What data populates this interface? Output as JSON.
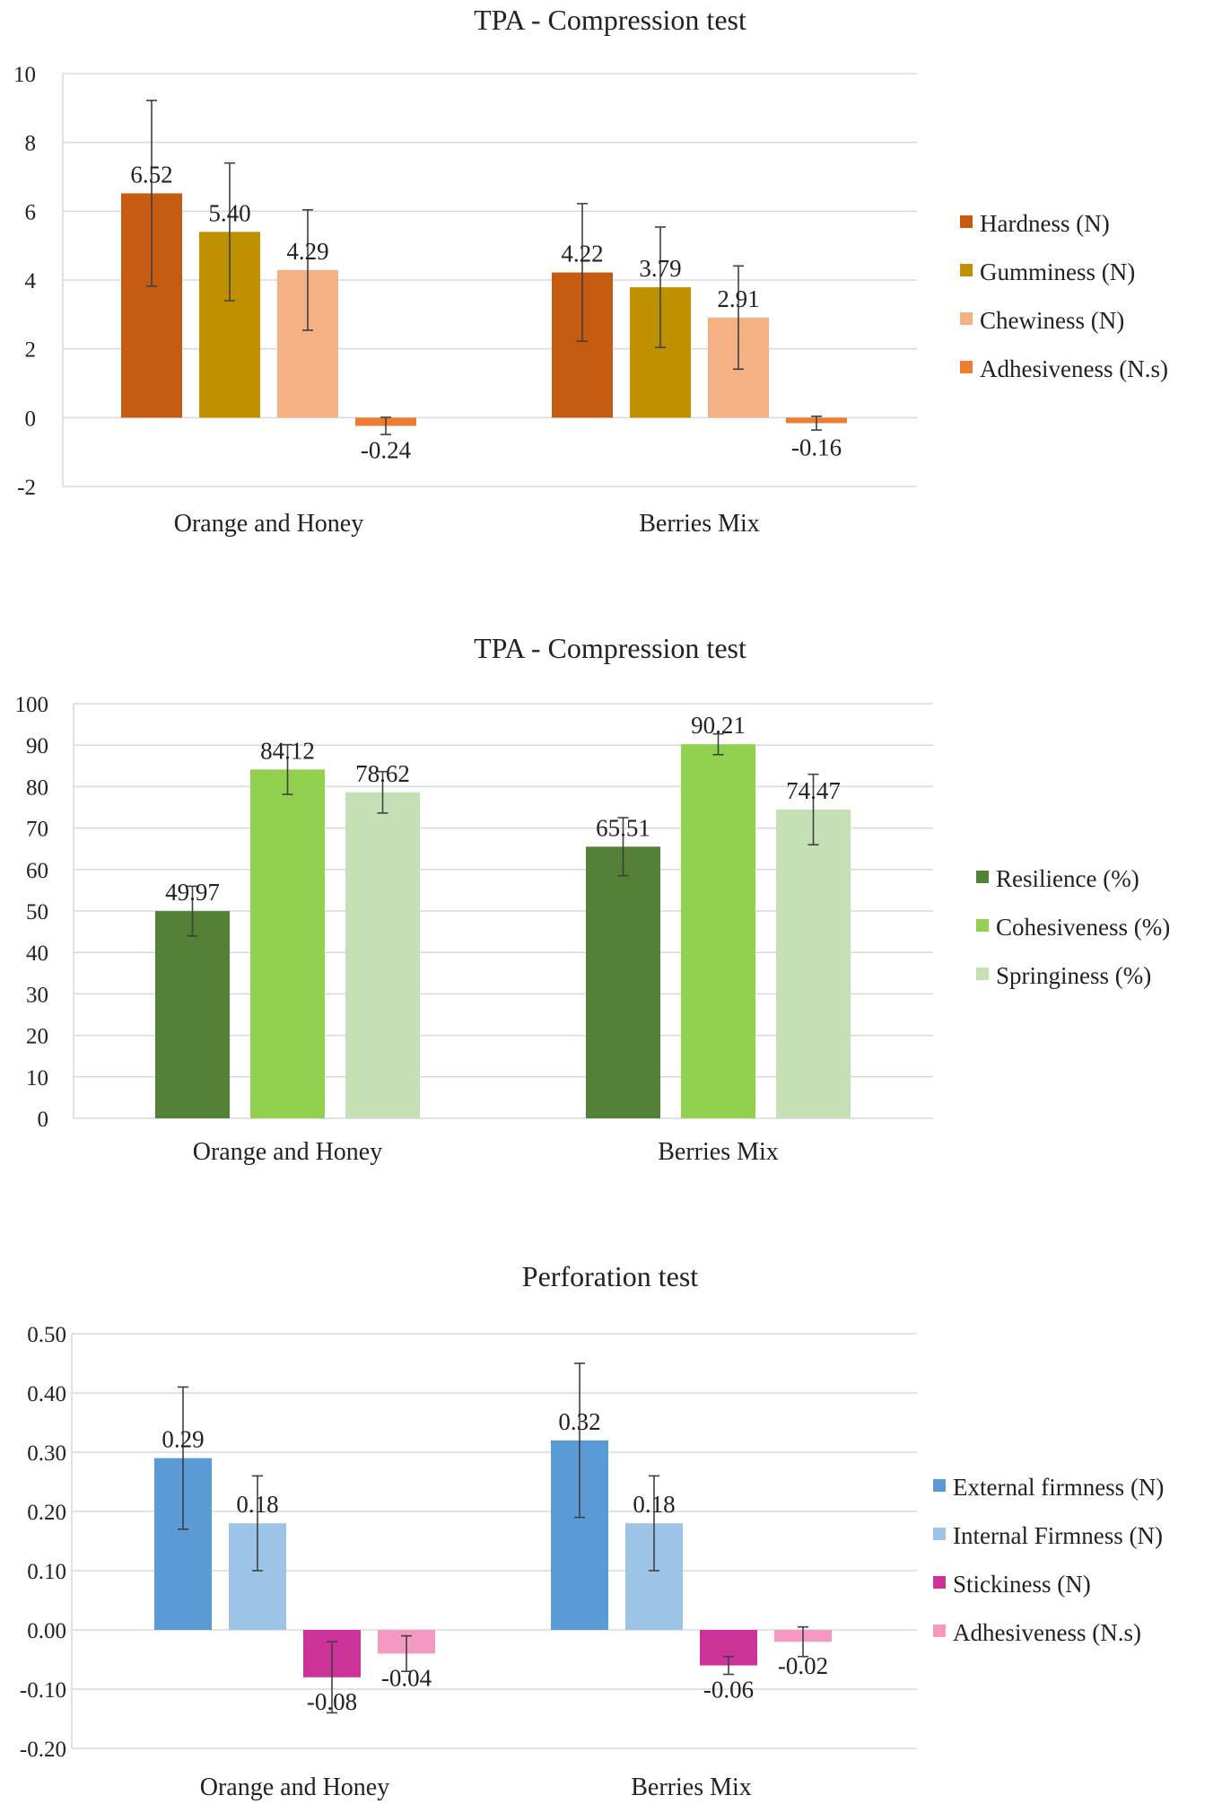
{
  "colors": {
    "hardness": "#C55A11",
    "gumminess": "#BF9000",
    "chewiness": "#F4B183",
    "adhesiveness_tpa": "#ED7D31",
    "resilience": "#538135",
    "cohesiveness": "#92D050",
    "springiness": "#C5E0B4",
    "external_firmness": "#5B9BD5",
    "internal_firmness": "#9DC3E6",
    "stickiness": "#CC3399",
    "adhesiveness_perf": "#F49AC2"
  },
  "chart_data": [
    {
      "type": "bar",
      "title": "TPA - Compression test",
      "categories": [
        "Orange and Honey",
        "Berries Mix"
      ],
      "ylim": [
        -2,
        10
      ],
      "yticks": [
        "-2",
        "0",
        "2",
        "4",
        "6",
        "8",
        "10"
      ],
      "ytick_values": [
        -2,
        0,
        2,
        4,
        6,
        8,
        10
      ],
      "grid": true,
      "legend_position": "right",
      "series": [
        {
          "name": "Hardness (N)",
          "color_key": "hardness",
          "values": [
            6.52,
            4.22
          ],
          "labels": [
            "6.52",
            "4.22"
          ],
          "errors": [
            2.7,
            2.0
          ]
        },
        {
          "name": "Gumminess (N)",
          "color_key": "gumminess",
          "values": [
            5.4,
            3.79
          ],
          "labels": [
            "5.40",
            "3.79"
          ],
          "errors": [
            2.0,
            1.75
          ]
        },
        {
          "name": "Chewiness (N)",
          "color_key": "chewiness",
          "values": [
            4.29,
            2.91
          ],
          "labels": [
            "4.29",
            "2.91"
          ],
          "errors": [
            1.75,
            1.5
          ]
        },
        {
          "name": "Adhesiveness (N.s)",
          "color_key": "adhesiveness_tpa",
          "values": [
            -0.24,
            -0.16
          ],
          "labels": [
            "-0.24",
            "-0.16"
          ],
          "errors": [
            0.25,
            0.2
          ]
        }
      ]
    },
    {
      "type": "bar",
      "title": "TPA - Compression test",
      "categories": [
        "Orange and Honey",
        "Berries Mix"
      ],
      "ylim": [
        0,
        100
      ],
      "yticks": [
        "0",
        "10",
        "20",
        "30",
        "40",
        "50",
        "60",
        "70",
        "80",
        "90",
        "100"
      ],
      "ytick_values": [
        0,
        10,
        20,
        30,
        40,
        50,
        60,
        70,
        80,
        90,
        100
      ],
      "grid": true,
      "legend_position": "right",
      "series": [
        {
          "name": "Resilience (%)",
          "color_key": "resilience",
          "values": [
            49.97,
            65.51
          ],
          "labels": [
            "49.97",
            "65.51"
          ],
          "errors": [
            6.0,
            7.0
          ]
        },
        {
          "name": "Cohesiveness (%)",
          "color_key": "cohesiveness",
          "values": [
            84.12,
            90.21
          ],
          "labels": [
            "84.12",
            "90.21"
          ],
          "errors": [
            6.0,
            2.5
          ]
        },
        {
          "name": "Springiness (%)",
          "color_key": "springiness",
          "values": [
            78.62,
            74.47
          ],
          "labels": [
            "78.62",
            "74.47"
          ],
          "errors": [
            5.0,
            8.5
          ]
        }
      ]
    },
    {
      "type": "bar",
      "title": "Perforation test",
      "categories": [
        "Orange and Honey",
        "Berries Mix"
      ],
      "ylim": [
        -0.2,
        0.5
      ],
      "yticks": [
        "-0.20",
        "-0.10",
        "0.00",
        "0.10",
        "0.20",
        "0.30",
        "0.40",
        "0.50"
      ],
      "ytick_values": [
        -0.2,
        -0.1,
        0.0,
        0.1,
        0.2,
        0.3,
        0.4,
        0.5
      ],
      "grid": true,
      "legend_position": "right",
      "series": [
        {
          "name": "External firmness (N)",
          "color_key": "external_firmness",
          "values": [
            0.29,
            0.32
          ],
          "labels": [
            "0.29",
            "0.32"
          ],
          "errors": [
            0.12,
            0.13
          ]
        },
        {
          "name": "Internal Firmness (N)",
          "color_key": "internal_firmness",
          "values": [
            0.18,
            0.18
          ],
          "labels": [
            "0.18",
            "0.18"
          ],
          "errors": [
            0.08,
            0.08
          ]
        },
        {
          "name": "Stickiness (N)",
          "color_key": "stickiness",
          "values": [
            -0.08,
            -0.06
          ],
          "labels": [
            "-0.08",
            "-0.06"
          ],
          "errors": [
            0.06,
            0.015
          ]
        },
        {
          "name": "Adhesiveness (N.s)",
          "color_key": "adhesiveness_perf",
          "values": [
            -0.04,
            -0.02
          ],
          "labels": [
            "-0.04",
            "-0.02"
          ],
          "errors": [
            0.03,
            0.025
          ]
        }
      ]
    }
  ]
}
